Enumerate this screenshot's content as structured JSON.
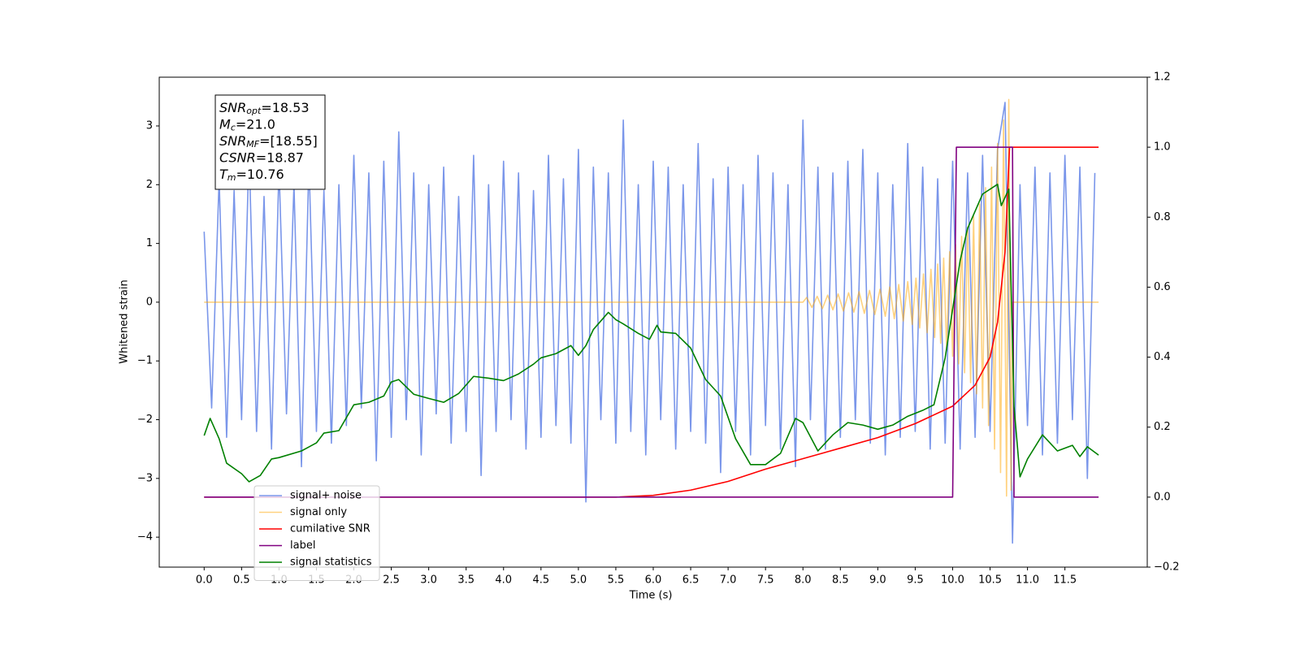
{
  "chart_data": {
    "type": "line",
    "xlabel": "Time (s)",
    "ylabel": "Whitened strain",
    "xlim": [
      -0.6,
      12.6
    ],
    "ylim": [
      -4.51,
      3.83
    ],
    "y2lim": [
      -0.2,
      1.2
    ],
    "xticks": [
      {
        "value": 0,
        "label": "0.0"
      },
      {
        "value": 0.5,
        "label": "0.5"
      },
      {
        "value": 1,
        "label": "1.0"
      },
      {
        "value": 1.5,
        "label": "1.5"
      },
      {
        "value": 2,
        "label": "2.0"
      },
      {
        "value": 2.5,
        "label": "2.5"
      },
      {
        "value": 3,
        "label": "3.0"
      },
      {
        "value": 3.5,
        "label": "3.5"
      },
      {
        "value": 4,
        "label": "4.0"
      },
      {
        "value": 4.5,
        "label": "4.5"
      },
      {
        "value": 5,
        "label": "5.0"
      },
      {
        "value": 5.5,
        "label": "5.5"
      },
      {
        "value": 6,
        "label": "6.0"
      },
      {
        "value": 6.5,
        "label": "6.5"
      },
      {
        "value": 7,
        "label": "7.0"
      },
      {
        "value": 7.5,
        "label": "7.5"
      },
      {
        "value": 8,
        "label": "8.0"
      },
      {
        "value": 8.5,
        "label": "8.5"
      },
      {
        "value": 9,
        "label": "9.0"
      },
      {
        "value": 9.5,
        "label": "9.5"
      },
      {
        "value": 10,
        "label": "10.0"
      },
      {
        "value": 10.5,
        "label": "10.5"
      },
      {
        "value": 11,
        "label": "11.0"
      },
      {
        "value": 11.5,
        "label": "11.5"
      }
    ],
    "yticks": [
      {
        "value": -4,
        "label": "−4"
      },
      {
        "value": -3,
        "label": "−3"
      },
      {
        "value": -2,
        "label": "−2"
      },
      {
        "value": -1,
        "label": "−1"
      },
      0,
      1,
      2,
      3
    ],
    "y2ticks": [
      {
        "value": -0.2,
        "label": "−0.2"
      },
      {
        "value": 0,
        "label": "0.0"
      },
      0.2,
      0.4,
      0.6,
      0.8,
      {
        "value": 1,
        "label": "1.0"
      },
      {
        "value": 1.2,
        "label": "1.2"
      }
    ],
    "legend": "lower left",
    "annotation": [
      {
        "base": "SNR",
        "sub": "opt",
        "rest": "=18.53"
      },
      {
        "base": "M",
        "sub": "c",
        "rest": "=21.0"
      },
      {
        "base": "SNR",
        "sub": "MF",
        "rest": "=[18.55]"
      },
      {
        "base": "CSNR",
        "rest": "=18.87"
      },
      {
        "base": "T",
        "sub": "m",
        "rest": "=10.76"
      }
    ],
    "series": [
      {
        "name": "signal+ noise",
        "color": "#4169e1",
        "opacity": 0.7,
        "axis": "y",
        "x": [
          0,
          0.1,
          0.2,
          0.3,
          0.4,
          0.5,
          0.6,
          0.7,
          0.8,
          0.9,
          1,
          1.1,
          1.2,
          1.3,
          1.4,
          1.5,
          1.6,
          1.7,
          1.8,
          1.9,
          2,
          2.1,
          2.2,
          2.3,
          2.4,
          2.5,
          2.6,
          2.7,
          2.8,
          2.9,
          3,
          3.1,
          3.2,
          3.3,
          3.4,
          3.5,
          3.6,
          3.7,
          3.8,
          3.9,
          4,
          4.1,
          4.2,
          4.3,
          4.4,
          4.5,
          4.6,
          4.7,
          4.8,
          4.9,
          5,
          5.1,
          5.2,
          5.3,
          5.4,
          5.5,
          5.6,
          5.7,
          5.8,
          5.9,
          6,
          6.1,
          6.2,
          6.3,
          6.4,
          6.5,
          6.6,
          6.7,
          6.8,
          6.9,
          7,
          7.1,
          7.2,
          7.3,
          7.4,
          7.5,
          7.6,
          7.7,
          7.8,
          7.9,
          8,
          8.1,
          8.2,
          8.3,
          8.4,
          8.5,
          8.6,
          8.7,
          8.8,
          8.9,
          9,
          9.1,
          9.2,
          9.3,
          9.4,
          9.5,
          9.6,
          9.7,
          9.8,
          9.9,
          10,
          10.1,
          10.2,
          10.3,
          10.4,
          10.5,
          10.6,
          10.7,
          10.8,
          10.9,
          11,
          11.1,
          11.2,
          11.3,
          11.4,
          11.5,
          11.6,
          11.7,
          11.8,
          11.9
        ],
        "values": [
          1.2,
          -1.8,
          2.1,
          -2.3,
          1.9,
          -2.0,
          2.6,
          -2.2,
          1.8,
          -2.5,
          2.3,
          -1.9,
          2.0,
          -2.8,
          2.4,
          -2.2,
          1.9,
          -2.4,
          2.0,
          -2.1,
          2.5,
          -1.8,
          2.2,
          -2.7,
          2.4,
          -2.3,
          2.9,
          -2.0,
          2.2,
          -2.6,
          2.0,
          -1.9,
          2.3,
          -2.4,
          1.8,
          -2.2,
          2.5,
          -2.95,
          2.0,
          -2.2,
          2.4,
          -2.0,
          2.2,
          -2.5,
          1.9,
          -2.3,
          2.5,
          -2.1,
          2.1,
          -2.4,
          2.6,
          -3.4,
          2.3,
          -2.0,
          2.2,
          -2.4,
          3.1,
          -2.2,
          2.0,
          -2.6,
          2.4,
          -2.0,
          2.3,
          -2.5,
          2.0,
          -2.2,
          2.7,
          -2.4,
          2.1,
          -2.9,
          2.3,
          -2.2,
          2.0,
          -2.6,
          2.5,
          -2.1,
          2.2,
          -2.5,
          2.0,
          -2.8,
          3.1,
          -2.0,
          2.3,
          -2.5,
          2.2,
          -2.3,
          2.4,
          -2.0,
          2.6,
          -2.4,
          2.2,
          -2.6,
          2.0,
          -2.3,
          2.7,
          -2.2,
          2.3,
          -2.5,
          2.1,
          -2.4,
          2.4,
          -2.5,
          2.2,
          -2.3,
          2.5,
          -2.2,
          2.6,
          3.4,
          -4.1,
          2.0,
          -2.1,
          2.3,
          -2.6,
          2.2,
          -2.4,
          2.5,
          -2.0,
          2.3,
          -3.0,
          2.2
        ]
      },
      {
        "name": "signal only",
        "color": "#ffa500",
        "opacity": 0.5,
        "axis": "y",
        "x": [
          0,
          8.0,
          8.05,
          8.12,
          8.19,
          8.26,
          8.33,
          8.4,
          8.47,
          8.54,
          8.61,
          8.68,
          8.75,
          8.82,
          8.89,
          8.96,
          9.03,
          9.1,
          9.16,
          9.22,
          9.28,
          9.34,
          9.4,
          9.46,
          9.51,
          9.56,
          9.61,
          9.66,
          9.71,
          9.76,
          9.8,
          9.84,
          9.88,
          9.92,
          9.96,
          10.0,
          10.04,
          10.08,
          10.12,
          10.16,
          10.2,
          10.24,
          10.28,
          10.32,
          10.36,
          10.4,
          10.44,
          10.48,
          10.52,
          10.56,
          10.6,
          10.64,
          10.68,
          10.72,
          10.75,
          10.78,
          10.8,
          11.95
        ],
        "values": [
          0,
          0,
          0.08,
          -0.09,
          0.1,
          -0.11,
          0.12,
          -0.13,
          0.14,
          -0.15,
          0.16,
          -0.17,
          0.18,
          -0.19,
          0.2,
          -0.21,
          0.22,
          -0.24,
          0.26,
          -0.28,
          0.3,
          -0.32,
          0.35,
          -0.38,
          0.41,
          -0.44,
          0.48,
          -0.52,
          0.56,
          -0.6,
          0.65,
          -0.7,
          0.75,
          -0.8,
          0.86,
          -0.92,
          0.98,
          -1.05,
          1.12,
          -1.2,
          1.28,
          -1.37,
          1.46,
          -1.56,
          1.67,
          -1.8,
          1.95,
          -2.1,
          2.3,
          -2.5,
          2.7,
          -2.9,
          3.1,
          -3.3,
          3.45,
          -3.2,
          0,
          0
        ]
      },
      {
        "name": "cumilative SNR",
        "color": "#ff0000",
        "opacity": 1,
        "axis": "y2",
        "x": [
          0,
          5.5,
          6,
          6.5,
          7,
          7.5,
          8,
          8.5,
          9,
          9.5,
          10,
          10.3,
          10.5,
          10.6,
          10.7,
          10.76,
          11.95
        ],
        "values": [
          0,
          0,
          0.005,
          0.02,
          0.045,
          0.08,
          0.11,
          0.14,
          0.17,
          0.21,
          0.26,
          0.32,
          0.4,
          0.5,
          0.7,
          1.0,
          1.0
        ]
      },
      {
        "name": "label",
        "color": "#800080",
        "opacity": 1,
        "axis": "y2",
        "x": [
          0,
          10.0,
          10.05,
          10.8,
          10.82,
          11.95
        ],
        "values": [
          0,
          0,
          1,
          1,
          0,
          0
        ]
      },
      {
        "name": "signal statistics",
        "color": "#008000",
        "opacity": 1,
        "axis": "y2",
        "x": [
          0,
          0.08,
          0.2,
          0.3,
          0.5,
          0.6,
          0.75,
          0.9,
          1.0,
          1.3,
          1.5,
          1.6,
          1.8,
          2.0,
          2.2,
          2.4,
          2.5,
          2.6,
          2.8,
          3.0,
          3.2,
          3.4,
          3.6,
          3.8,
          4.0,
          4.2,
          4.4,
          4.5,
          4.7,
          4.9,
          5.0,
          5.1,
          5.2,
          5.4,
          5.5,
          5.6,
          5.8,
          5.95,
          6.05,
          6.1,
          6.3,
          6.5,
          6.7,
          6.9,
          7.1,
          7.3,
          7.5,
          7.7,
          7.9,
          8.0,
          8.2,
          8.4,
          8.6,
          8.8,
          9.0,
          9.2,
          9.4,
          9.6,
          9.75,
          9.9,
          10.1,
          10.2,
          10.4,
          10.6,
          10.65,
          10.75,
          10.82,
          10.9,
          11.0,
          11.2,
          11.4,
          11.6,
          11.7,
          11.8,
          11.95
        ],
        "values": [
          0.176,
          0.225,
          0.167,
          0.097,
          0.067,
          0.044,
          0.062,
          0.109,
          0.113,
          0.132,
          0.155,
          0.183,
          0.19,
          0.264,
          0.271,
          0.289,
          0.329,
          0.336,
          0.294,
          0.282,
          0.271,
          0.296,
          0.345,
          0.34,
          0.333,
          0.352,
          0.38,
          0.398,
          0.41,
          0.433,
          0.405,
          0.433,
          0.479,
          0.528,
          0.507,
          0.495,
          0.468,
          0.451,
          0.491,
          0.472,
          0.468,
          0.426,
          0.336,
          0.289,
          0.167,
          0.093,
          0.093,
          0.125,
          0.225,
          0.213,
          0.132,
          0.178,
          0.213,
          0.206,
          0.194,
          0.206,
          0.231,
          0.248,
          0.264,
          0.398,
          0.676,
          0.768,
          0.866,
          0.894,
          0.833,
          0.88,
          0.259,
          0.058,
          0.109,
          0.178,
          0.132,
          0.148,
          0.116,
          0.144,
          0.12
        ]
      }
    ]
  }
}
